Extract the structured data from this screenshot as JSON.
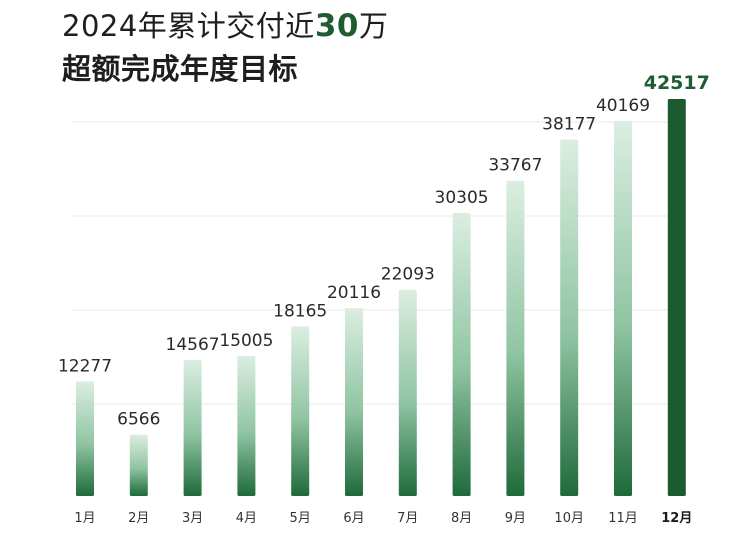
{
  "header": {
    "title_prefix": "2024年累计交付近",
    "title_number": "30",
    "title_suffix": "万",
    "subtitle": "超额完成年度目标"
  },
  "colors": {
    "bar_top": "#dbeee1",
    "bar_bottom": "#1f6a3a",
    "highlight_bar": "#1c5a2f",
    "highlight_text": "#1f5c31",
    "gridline": "#eaeaea"
  },
  "chart_data": {
    "type": "bar",
    "title": "2024年累计交付近30万",
    "subtitle": "超额完成年度目标",
    "categories": [
      "1月",
      "2月",
      "3月",
      "4月",
      "5月",
      "6月",
      "7月",
      "8月",
      "9月",
      "10月",
      "11月",
      "12月"
    ],
    "values": [
      12277,
      6566,
      14567,
      15005,
      18165,
      20116,
      22093,
      30305,
      33767,
      38177,
      40169,
      42517
    ],
    "value_labels": [
      "12277",
      "6566",
      "14567",
      "15005",
      "18165",
      "20116",
      "22093",
      "30305",
      "33767",
      "38177",
      "40169",
      "42517"
    ],
    "highlight_index": 11,
    "grid": true,
    "legend": "none"
  }
}
